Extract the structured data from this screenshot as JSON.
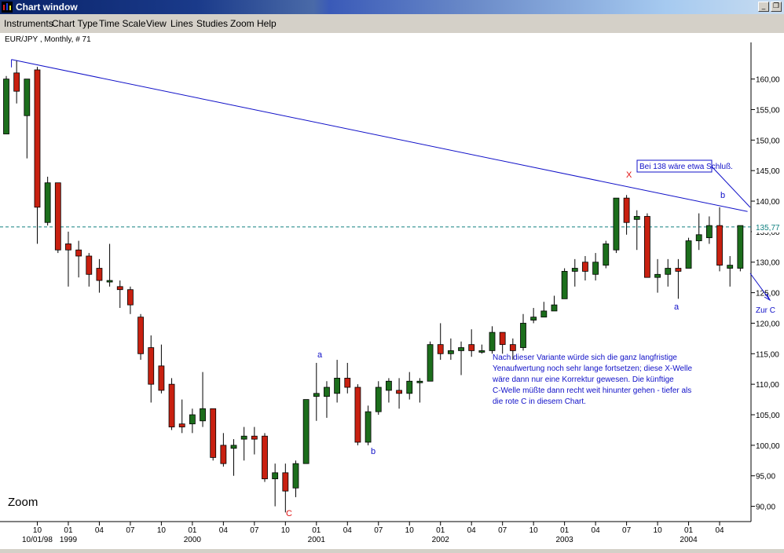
{
  "window": {
    "title": "Chart window"
  },
  "menu": [
    "Instruments",
    "Chart Type",
    "Time Scale",
    "View",
    "Lines",
    "Studies",
    "Zoom",
    "Help"
  ],
  "colors": {
    "bull": "#1c6e1c",
    "bear": "#c82010",
    "trendline": "#1010c8",
    "dashed": "#108080",
    "annotation": "#1010c8",
    "red_label": "#e01010"
  },
  "chart_data": {
    "type": "candlestick",
    "title": "EUR/JPY , Monthly, # 71",
    "ylim": [
      87.5,
      166
    ],
    "y_ticks": [
      90,
      95,
      100,
      105,
      110,
      115,
      120,
      125,
      130,
      135,
      140,
      145,
      150,
      155,
      160
    ],
    "y_tick_labels": [
      "90,00",
      "95,00",
      "100,00",
      "105,00",
      "110,00",
      "115,00",
      "120,00",
      "125,00",
      "130,00",
      "135,00",
      "140,00",
      "145,00",
      "150,00",
      "155,00",
      "160,00"
    ],
    "current_price": 135.77,
    "current_price_label": "135,77",
    "x_ticks": [
      {
        "i": 3,
        "label": "10",
        "label2": "10/01/98"
      },
      {
        "i": 6,
        "label": "01",
        "label2": "1999"
      },
      {
        "i": 9,
        "label": "04"
      },
      {
        "i": 12,
        "label": "07"
      },
      {
        "i": 15,
        "label": "10"
      },
      {
        "i": 18,
        "label": "01",
        "label2": "2000"
      },
      {
        "i": 21,
        "label": "04"
      },
      {
        "i": 24,
        "label": "07"
      },
      {
        "i": 27,
        "label": "10"
      },
      {
        "i": 30,
        "label": "01",
        "label2": "2001"
      },
      {
        "i": 33,
        "label": "04"
      },
      {
        "i": 36,
        "label": "07"
      },
      {
        "i": 39,
        "label": "10"
      },
      {
        "i": 42,
        "label": "01",
        "label2": "2002"
      },
      {
        "i": 45,
        "label": "04"
      },
      {
        "i": 48,
        "label": "07"
      },
      {
        "i": 51,
        "label": "10"
      },
      {
        "i": 54,
        "label": "01",
        "label2": "2003"
      },
      {
        "i": 57,
        "label": "04"
      },
      {
        "i": 60,
        "label": "07"
      },
      {
        "i": 63,
        "label": "10"
      },
      {
        "i": 66,
        "label": "01",
        "label2": "2004"
      },
      {
        "i": 69,
        "label": "04"
      }
    ],
    "candles": [
      [
        151,
        160,
        151,
        160.5
      ],
      [
        161,
        158,
        156,
        163
      ],
      [
        154,
        160,
        147,
        160
      ],
      [
        161.5,
        139,
        133,
        162
      ],
      [
        136.5,
        143,
        136,
        144
      ],
      [
        143,
        132,
        131.5,
        143
      ],
      [
        133,
        132,
        126,
        135
      ],
      [
        132,
        131,
        127.5,
        133.5
      ],
      [
        131,
        128,
        126,
        131.5
      ],
      [
        129,
        127,
        125,
        130.5
      ],
      [
        127,
        127,
        126,
        133
      ],
      [
        126,
        125.5,
        122.5,
        127
      ],
      [
        125.5,
        123,
        121.5,
        126
      ],
      [
        121,
        115,
        114,
        121.5
      ],
      [
        116,
        110,
        107,
        118
      ],
      [
        113,
        109,
        108.5,
        116.5
      ],
      [
        110,
        103,
        102.5,
        111
      ],
      [
        103.5,
        103,
        102,
        107.5
      ],
      [
        103.5,
        105,
        102,
        106
      ],
      [
        104,
        106,
        103,
        112
      ],
      [
        106,
        98,
        97.5,
        106
      ],
      [
        100,
        97,
        96.5,
        102
      ],
      [
        99.5,
        100,
        95,
        101
      ],
      [
        101,
        101.5,
        97.5,
        103
      ],
      [
        101.5,
        101,
        98.5,
        103
      ],
      [
        101.5,
        94.5,
        94,
        102
      ],
      [
        94.5,
        95.5,
        90,
        97
      ],
      [
        95.5,
        92.5,
        89,
        97
      ],
      [
        93,
        97,
        91.5,
        97.5
      ],
      [
        97,
        107.5,
        97,
        107.5
      ],
      [
        108,
        108.5,
        104,
        113.5
      ],
      [
        108,
        109.5,
        104.5,
        110.5
      ],
      [
        108.5,
        111,
        107,
        114
      ],
      [
        111,
        109.5,
        108.5,
        113.5
      ],
      [
        109.5,
        100.5,
        100,
        110
      ],
      [
        100.5,
        105.5,
        100,
        106.5
      ],
      [
        105.5,
        109.5,
        105,
        110.5
      ],
      [
        109,
        110.5,
        107,
        111
      ],
      [
        109,
        108.5,
        106,
        111
      ],
      [
        108.5,
        110.5,
        107.5,
        112
      ],
      [
        110.5,
        110.5,
        107,
        111
      ],
      [
        110.5,
        116.5,
        110.5,
        117
      ],
      [
        116.5,
        115,
        114,
        120
      ],
      [
        115,
        115.5,
        114,
        117.5
      ],
      [
        115.5,
        116,
        111.5,
        117
      ],
      [
        116.5,
        115.5,
        114.5,
        119
      ],
      [
        115.5,
        115.5,
        115,
        116.5
      ],
      [
        115.5,
        118.5,
        115,
        119.5
      ],
      [
        118.5,
        116.5,
        115,
        118.5
      ],
      [
        116.5,
        115.5,
        114,
        117.5
      ],
      [
        116,
        120,
        115.5,
        121.5
      ],
      [
        120.5,
        121,
        120,
        122.5
      ],
      [
        121,
        122,
        121,
        123.5
      ],
      [
        122,
        123,
        122,
        124.5
      ],
      [
        124,
        128.5,
        124,
        129
      ],
      [
        128.5,
        129,
        126,
        130.5
      ],
      [
        130,
        128.5,
        127,
        131
      ],
      [
        128,
        130,
        127,
        131.5
      ],
      [
        129.5,
        133,
        129,
        133.5
      ],
      [
        132,
        140.5,
        131.5,
        140.5
      ],
      [
        140.5,
        136.5,
        134.5,
        141
      ],
      [
        137,
        137.5,
        132,
        138.5
      ],
      [
        137.5,
        127.5,
        127.5,
        138
      ],
      [
        127.5,
        128,
        125,
        130.5
      ],
      [
        128,
        129,
        126,
        130.5
      ],
      [
        129,
        128.5,
        124,
        130.5
      ],
      [
        129,
        133.5,
        129,
        134
      ],
      [
        133.5,
        134.5,
        132,
        138
      ],
      [
        134,
        136,
        133,
        137.5
      ],
      [
        136,
        129.5,
        128.5,
        139
      ],
      [
        129,
        129.5,
        126,
        131
      ],
      [
        129,
        136,
        128.5,
        136
      ]
    ],
    "trendline": {
      "from": [
        0.5,
        163.2
      ],
      "to": [
        71.7,
        138.3
      ]
    },
    "annotations": [
      {
        "text": "Bei 138 wäre etwa Schluß.",
        "type": "boxed"
      },
      {
        "text": "X",
        "color": "red"
      },
      {
        "text": "b"
      },
      {
        "text": "a"
      },
      {
        "text": "a"
      },
      {
        "text": "b"
      },
      {
        "text": "C",
        "color": "red"
      },
      {
        "text": "Zur C"
      }
    ],
    "note_lines": [
      "Nach dieser Variante würde sich die ganz langfristige",
      "Yenaufwertung noch sehr lange fortsetzen; diese X-Welle",
      "wäre dann nur eine Korrektur gewesen. Die künftige",
      "C-Welle müßte dann recht weit hinunter gehen - tiefer als",
      "die rote C in diesem Chart."
    ],
    "zoom_label": "Zoom"
  }
}
